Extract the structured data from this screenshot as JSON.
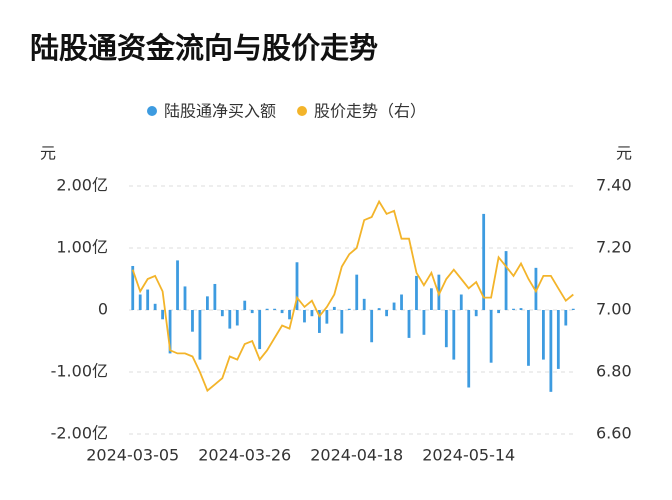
{
  "chart_data": {
    "type": "bar",
    "title": "陆股通资金流向与股价走势",
    "y_label": "元",
    "y2_label": "元",
    "categories": [
      "2024-03-05",
      null,
      null,
      null,
      null,
      null,
      null,
      null,
      null,
      null,
      null,
      null,
      null,
      null,
      null,
      "2024-03-26",
      null,
      null,
      null,
      null,
      null,
      null,
      null,
      null,
      null,
      null,
      null,
      null,
      null,
      null,
      "2024-04-18",
      null,
      null,
      null,
      null,
      null,
      null,
      null,
      null,
      null,
      null,
      null,
      null,
      null,
      null,
      "2024-05-14",
      null,
      null,
      null,
      null,
      null,
      null,
      null,
      null,
      null,
      null,
      null,
      null,
      null,
      null
    ],
    "series": [
      {
        "name": "陆股通净买入额",
        "type": "bar",
        "color": "#3d9be0",
        "values": [
          0.71,
          0.25,
          0.33,
          0.1,
          -0.15,
          -0.7,
          0.8,
          0.38,
          -0.35,
          -0.8,
          0.22,
          0.42,
          -0.1,
          -0.3,
          -0.25,
          0.15,
          -0.05,
          -0.63,
          0.02,
          0.02,
          -0.05,
          -0.15,
          0.77,
          -0.2,
          -0.1,
          -0.37,
          -0.22,
          0.05,
          -0.38,
          0.02,
          0.57,
          0.18,
          -0.52,
          0.03,
          -0.1,
          0.12,
          0.25,
          -0.45,
          0.55,
          -0.4,
          0.35,
          0.57,
          -0.6,
          -0.8,
          0.25,
          -1.25,
          -0.1,
          1.55,
          -0.85,
          -0.05,
          0.95,
          0.02,
          0.03,
          -0.9,
          0.68,
          -0.8,
          -1.32,
          -0.95,
          -0.25,
          0.02
        ]
      },
      {
        "name": "股价走势（右）",
        "type": "line",
        "axis": "y2",
        "color": "#f3b42a",
        "values": [
          7.13,
          7.06,
          7.1,
          7.11,
          7.06,
          6.87,
          6.86,
          6.86,
          6.85,
          6.8,
          6.74,
          6.76,
          6.78,
          6.85,
          6.84,
          6.89,
          6.9,
          6.84,
          6.87,
          6.91,
          6.95,
          6.94,
          7.04,
          7.01,
          7.03,
          6.98,
          7.01,
          7.05,
          7.14,
          7.18,
          7.2,
          7.29,
          7.3,
          7.35,
          7.31,
          7.32,
          7.23,
          7.23,
          7.12,
          7.08,
          7.12,
          7.05,
          7.1,
          7.13,
          7.1,
          7.07,
          7.09,
          7.04,
          7.04,
          7.17,
          7.14,
          7.11,
          7.15,
          7.1,
          7.06,
          7.11,
          7.11,
          7.07,
          7.03,
          7.05
        ]
      }
    ],
    "ylim": [
      -2,
      2
    ],
    "yticks": [
      {
        "value": -2,
        "label": "-2.00亿"
      },
      {
        "value": -1,
        "label": "-1.00亿"
      },
      0,
      {
        "value": 1,
        "label": "1.00亿"
      },
      {
        "value": 2,
        "label": "2.00亿"
      }
    ],
    "y2lim": [
      6.6,
      7.4
    ],
    "y2ticks": [
      {
        "value": 6.6,
        "label": "6.60"
      },
      {
        "value": 6.8,
        "label": "6.80"
      },
      {
        "value": 7,
        "label": "7.00"
      },
      {
        "value": 7.2,
        "label": "7.20"
      },
      {
        "value": 7.4,
        "label": "7.40"
      }
    ],
    "grid": true
  }
}
